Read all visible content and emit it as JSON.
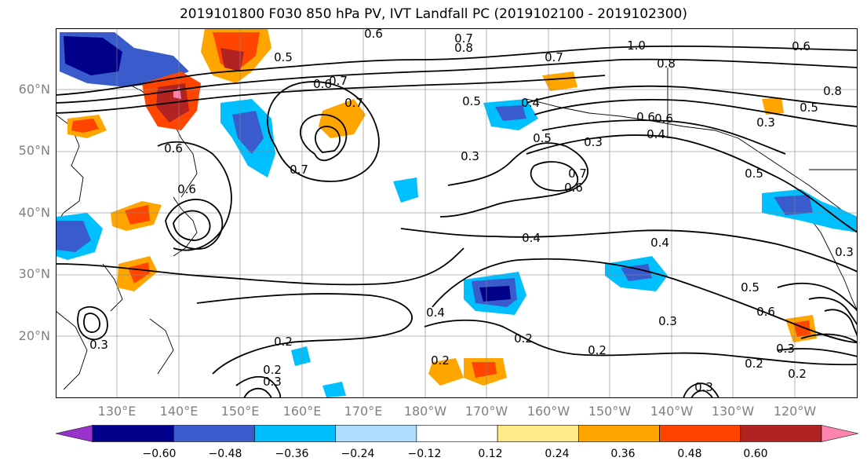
{
  "title": "2019101800 F030 850 hPa PV, IVT Landfall PC (2019102100 - 2019102300)",
  "lat_labels": [
    "60°N",
    "50°N",
    "40°N",
    "30°N",
    "20°N"
  ],
  "lon_labels": [
    "130°E",
    "140°E",
    "150°E",
    "160°E",
    "170°E",
    "180°W",
    "170°W",
    "160°W",
    "150°W",
    "140°W",
    "130°W",
    "120°W"
  ],
  "colorbar": {
    "colors": [
      "#9932CC",
      "#00008B",
      "#3A5BCC",
      "#00BFFF",
      "#ADDEFF",
      "#FFFFFF",
      "#FFEA8A",
      "#FFA500",
      "#FF4500",
      "#B22222",
      "#FF85B0"
    ],
    "tick_labels": [
      "−0.60",
      "−0.48",
      "−0.36",
      "−0.24",
      "−0.12",
      "0.12",
      "0.24",
      "0.36",
      "0.48",
      "0.60"
    ]
  },
  "contour_labels": [
    "0.6",
    "0.7",
    "1.0",
    "0.8",
    "0.6",
    "0.8",
    "0.5",
    "0.7",
    "0.5",
    "0.6",
    "0.8",
    "0.7",
    "0.7",
    "0.6",
    "0.5",
    "0.4",
    "0.3",
    "0.6",
    "0.4",
    "0.3",
    "0.3",
    "0.7",
    "0.6",
    "0.5",
    "0.6",
    "0.4",
    "0.4",
    "0.5",
    "0.6",
    "0.3",
    "0.2",
    "0.4",
    "0.2",
    "0.2",
    "0.2",
    "0.3",
    "0.2",
    "0.2",
    "0.3",
    "0.2",
    "0.3",
    "0.3",
    "0.5",
    "0.6",
    "0.7",
    "0.3"
  ]
}
